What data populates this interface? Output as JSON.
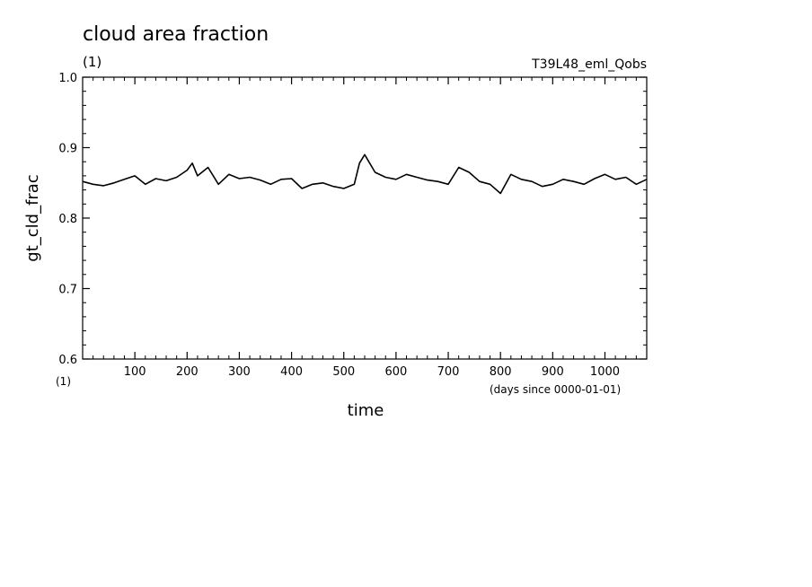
{
  "chart_data": {
    "type": "line",
    "title": "cloud area fraction",
    "title_units": "(1)",
    "run_label": "T39L48_eml_Qobs",
    "xlabel": "time",
    "xunits": "(days since 0000-01-01)",
    "ylabel": "gt_cld_frac",
    "yunits": "(1)",
    "xlim": [
      0,
      1080
    ],
    "ylim": [
      0.6,
      1.0
    ],
    "x_ticks": [
      100,
      200,
      300,
      400,
      500,
      600,
      700,
      800,
      900,
      1000
    ],
    "y_ticks": [
      "0.6",
      "0.7",
      "0.8",
      "0.9",
      "1.0"
    ],
    "line_color": "#000000",
    "series": [
      {
        "x": [
          0,
          20,
          40,
          60,
          80,
          100,
          120,
          140,
          160,
          180,
          200,
          210,
          220,
          240,
          260,
          280,
          300,
          320,
          340,
          360,
          380,
          400,
          420,
          440,
          460,
          480,
          500,
          520,
          530,
          540,
          560,
          580,
          600,
          620,
          640,
          660,
          680,
          700,
          720,
          740,
          760,
          780,
          800,
          820,
          840,
          860,
          880,
          900,
          920,
          940,
          960,
          980,
          1000,
          1020,
          1040,
          1060,
          1080
        ],
        "y": [
          0.852,
          0.848,
          0.846,
          0.85,
          0.855,
          0.86,
          0.848,
          0.856,
          0.853,
          0.858,
          0.868,
          0.878,
          0.86,
          0.872,
          0.848,
          0.862,
          0.856,
          0.858,
          0.854,
          0.848,
          0.855,
          0.856,
          0.842,
          0.848,
          0.85,
          0.845,
          0.842,
          0.848,
          0.878,
          0.89,
          0.865,
          0.858,
          0.855,
          0.862,
          0.858,
          0.854,
          0.852,
          0.848,
          0.872,
          0.865,
          0.852,
          0.848,
          0.835,
          0.862,
          0.855,
          0.852,
          0.845,
          0.848,
          0.855,
          0.852,
          0.848,
          0.856,
          0.862,
          0.855,
          0.858,
          0.848,
          0.855
        ]
      }
    ]
  }
}
